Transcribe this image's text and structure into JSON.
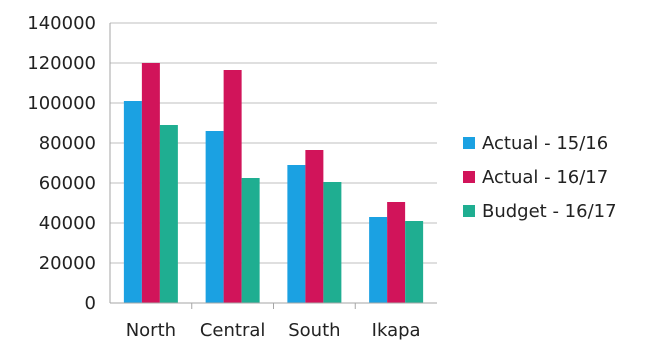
{
  "chart_data": {
    "type": "bar",
    "categories": [
      "North",
      "Central",
      "South",
      "Ikapa"
    ],
    "series": [
      {
        "name": "Actual - 15/16",
        "values": [
          101000,
          86000,
          69000,
          43000
        ],
        "color": "#1ba1e2"
      },
      {
        "name": "Actual - 16/17",
        "values": [
          120000,
          116500,
          76500,
          50500
        ],
        "color": "#d1145a"
      },
      {
        "name": "Budget - 16/17",
        "values": [
          89000,
          62500,
          60500,
          41000
        ],
        "color": "#1fae91"
      }
    ],
    "ylim": [
      0,
      140000
    ],
    "yticks": [
      "0",
      "20000",
      "40000",
      "60000",
      "80000",
      "100000",
      "120000",
      "140000"
    ],
    "ytick_values": [
      0,
      20000,
      40000,
      60000,
      80000,
      100000,
      120000,
      140000
    ],
    "grid": true,
    "legend_position": "right",
    "gridline_color": "#bfbfbf"
  }
}
